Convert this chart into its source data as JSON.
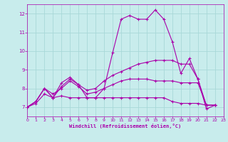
{
  "xlabel": "Windchill (Refroidissement éolien,°C)",
  "xlim": [
    0,
    23
  ],
  "ylim": [
    6.5,
    12.5
  ],
  "yticks": [
    7,
    8,
    9,
    10,
    11,
    12
  ],
  "xticks": [
    0,
    1,
    2,
    3,
    4,
    5,
    6,
    7,
    8,
    9,
    10,
    11,
    12,
    13,
    14,
    15,
    16,
    17,
    18,
    19,
    20,
    21,
    22,
    23
  ],
  "bg_color": "#c8ecec",
  "grid_color": "#a8d8d8",
  "line_color": "#aa00aa",
  "lines": [
    [
      7.0,
      7.3,
      8.0,
      7.5,
      8.1,
      8.5,
      8.2,
      7.5,
      7.5,
      8.0,
      9.9,
      11.7,
      11.9,
      11.7,
      11.7,
      12.2,
      11.7,
      10.5,
      8.8,
      9.6,
      8.5,
      6.9,
      7.1
    ],
    [
      7.0,
      7.3,
      8.0,
      7.5,
      8.3,
      8.6,
      8.2,
      7.9,
      8.0,
      8.4,
      8.7,
      8.9,
      9.1,
      9.3,
      9.4,
      9.5,
      9.5,
      9.5,
      9.3,
      9.3,
      8.5,
      7.1,
      7.1
    ],
    [
      7.0,
      7.3,
      8.0,
      7.7,
      8.0,
      8.4,
      8.1,
      7.7,
      7.8,
      8.0,
      8.2,
      8.4,
      8.5,
      8.5,
      8.5,
      8.4,
      8.4,
      8.4,
      8.3,
      8.3,
      8.3,
      7.1,
      7.1
    ],
    [
      7.0,
      7.2,
      7.7,
      7.5,
      7.6,
      7.5,
      7.5,
      7.5,
      7.5,
      7.5,
      7.5,
      7.5,
      7.5,
      7.5,
      7.5,
      7.5,
      7.5,
      7.3,
      7.2,
      7.2,
      7.2,
      7.1,
      7.1
    ]
  ]
}
